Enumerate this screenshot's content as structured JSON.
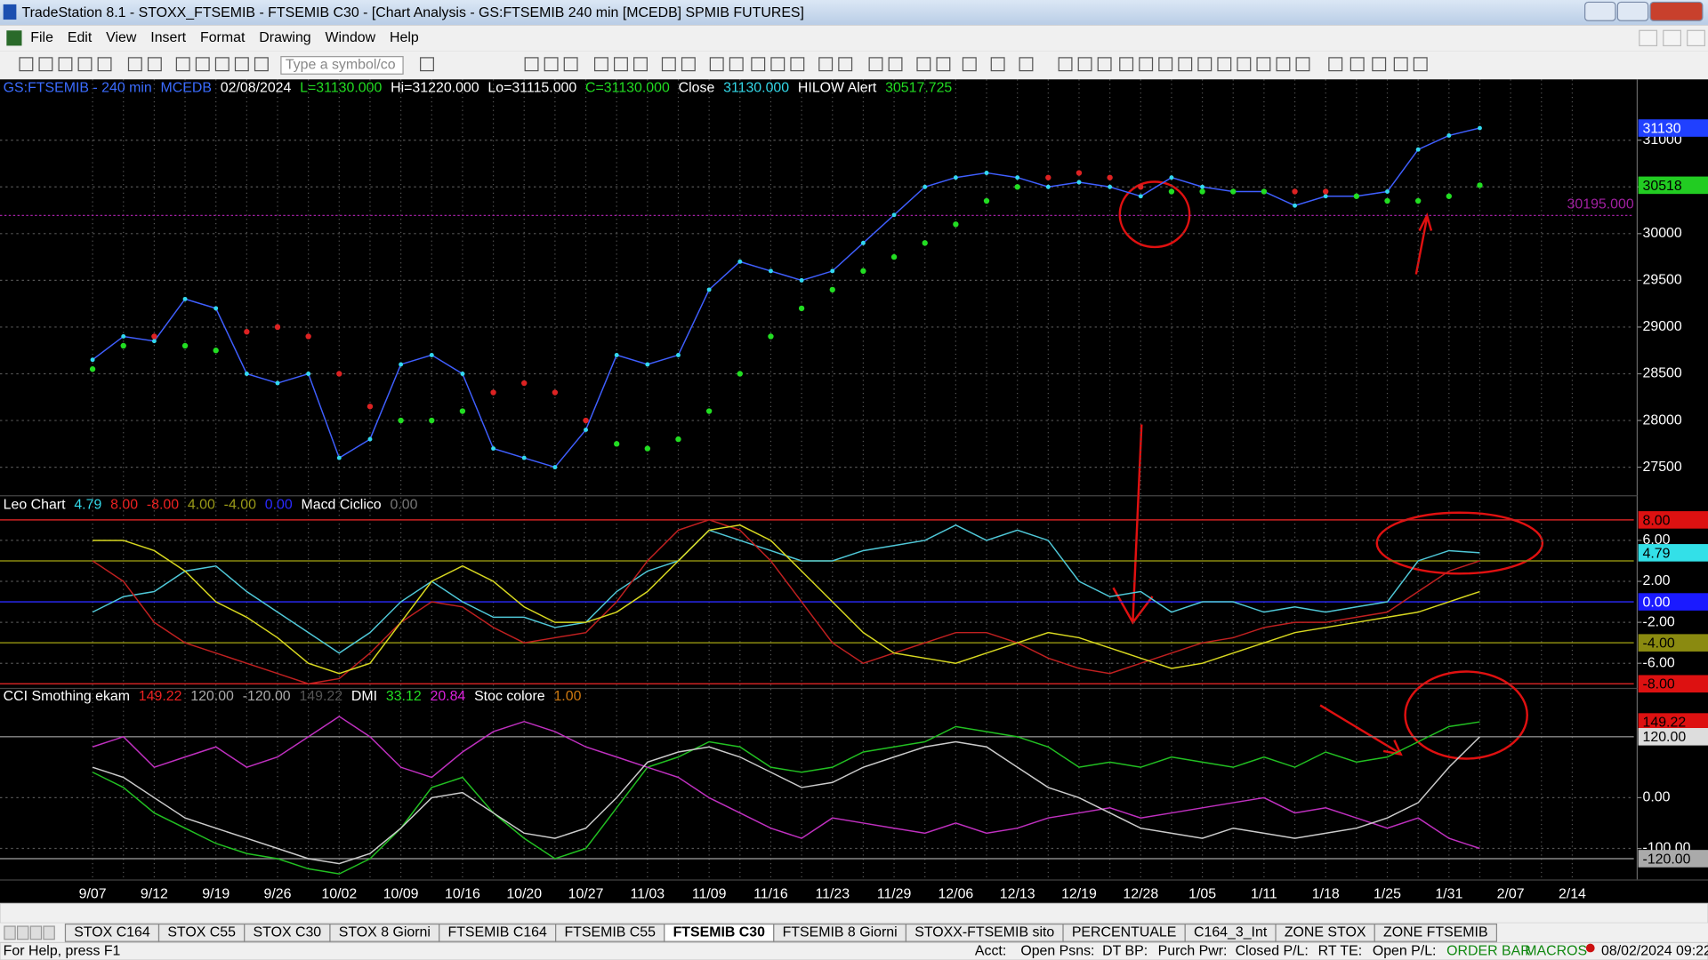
{
  "window": {
    "title": "TradeStation 8.1 - STOXX_FTSEMIB - FTSEMIB C30 - [Chart Analysis - GS:FTSEMIB  240 min  [MCEDB] SPMIB FUTURES]",
    "menu": [
      "File",
      "Edit",
      "View",
      "Insert",
      "Format",
      "Drawing",
      "Window",
      "Help"
    ],
    "symbol_box": "Type a symbol/co"
  },
  "chart_data": [
    {
      "type": "line",
      "header": [
        {
          "text": "GS:FTSEMIB - 240 min",
          "color": "#3b6cff"
        },
        {
          "text": "MCEDB",
          "color": "#3b6cff"
        },
        {
          "text": "02/08/2024",
          "color": "#ffffff"
        },
        {
          "text": "L=31130.000",
          "color": "#22dd22"
        },
        {
          "text": "Hi=31220.000",
          "color": "#ffffff"
        },
        {
          "text": "Lo=31115.000",
          "color": "#ffffff"
        },
        {
          "text": "C=31130.000",
          "color": "#22dd22"
        },
        {
          "text": "Close",
          "color": "#ffffff"
        },
        {
          "text": "31130.000",
          "color": "#33d8e8"
        },
        {
          "text": "HILOW Alert",
          "color": "#ffffff"
        },
        {
          "text": "30517.725",
          "color": "#22dd22"
        }
      ],
      "categories": [
        "9/07",
        null,
        "9/12",
        null,
        "9/19",
        null,
        "9/26",
        null,
        "10/02",
        null,
        "10/09",
        null,
        "10/16",
        null,
        "10/20",
        null,
        "10/27",
        null,
        "11/03",
        null,
        "11/09",
        null,
        "11/16",
        null,
        "11/23",
        null,
        "11/29",
        null,
        "12/06",
        null,
        "12/13",
        null,
        "12/19",
        null,
        "12/28",
        null,
        "1/05",
        null,
        "1/11",
        null,
        "1/18",
        null,
        "1/25",
        null,
        "1/31",
        null,
        "2/07",
        null,
        "2/14"
      ],
      "series": [
        {
          "color": "#3f5fff",
          "point_color": "#33d8f0",
          "values": [
            28650,
            28900,
            28850,
            29300,
            29200,
            28500,
            28400,
            28500,
            27600,
            27800,
            28600,
            28700,
            28500,
            27700,
            27600,
            27500,
            27900,
            28700,
            28600,
            28700,
            29400,
            29700,
            29600,
            29500,
            29600,
            29900,
            30200,
            30500,
            30600,
            30650,
            30600,
            30500,
            30550,
            30500,
            30400,
            30600,
            30500,
            30450,
            30450,
            30300,
            30400,
            30400,
            30450,
            30900,
            31050,
            31130,
            null,
            null,
            null
          ]
        },
        {
          "color": "#22dd22",
          "color_above": "#dd2222",
          "values": [
            28550,
            28800,
            28900,
            28800,
            28750,
            28950,
            29000,
            28900,
            28500,
            28150,
            28000,
            28000,
            28100,
            28300,
            28400,
            28300,
            28000,
            27750,
            27700,
            27800,
            28100,
            28500,
            28900,
            29200,
            29400,
            29600,
            29750,
            29900,
            30100,
            30350,
            30500,
            30600,
            30650,
            30600,
            30500,
            30450,
            30450,
            30450,
            30450,
            30450,
            30450,
            30400,
            30350,
            30350,
            30400,
            30518,
            null,
            null,
            null
          ]
        }
      ],
      "ylim": [
        27200,
        31650
      ],
      "yticks": [
        27500,
        28000,
        28500,
        29000,
        29500,
        30000,
        30500,
        31000
      ],
      "markers": [
        {
          "value": 31130,
          "color": "#2040ff"
        },
        {
          "value": 30518,
          "color": "#22cc22"
        }
      ],
      "reference_line": {
        "value": 30195,
        "label": "30195.000",
        "color": "#a020a0"
      },
      "grid": true
    },
    {
      "type": "line",
      "header": [
        {
          "text": "Leo Chart",
          "color": "#ffffff"
        },
        {
          "text": "4.79",
          "color": "#33d8e8"
        },
        {
          "text": "8.00",
          "color": "#ee2222"
        },
        {
          "text": "-8.00",
          "color": "#ee2222"
        },
        {
          "text": "4.00",
          "color": "#9a9a18"
        },
        {
          "text": "-4.00",
          "color": "#9a9a18"
        },
        {
          "text": "0.00",
          "color": "#2a2aff"
        },
        {
          "text": "Macd Ciclico",
          "color": "#ffffff"
        },
        {
          "text": "0.00",
          "color": "#777777"
        }
      ],
      "series": [
        {
          "color": "#4fc8d8",
          "values": [
            -1,
            0.5,
            1,
            3,
            3.5,
            1,
            -1,
            -3,
            -5,
            -3,
            0,
            2,
            0,
            -1.5,
            -1.5,
            -2.5,
            -2,
            1,
            3,
            4,
            7,
            6,
            5,
            4,
            4,
            5,
            5.5,
            6,
            7.5,
            6,
            7,
            6,
            2,
            0.5,
            1,
            -1,
            0,
            0,
            -1,
            -0.5,
            -1,
            -0.5,
            0,
            4,
            5,
            4.79,
            null,
            null,
            null
          ]
        },
        {
          "color": "#c02020",
          "values": [
            4,
            2,
            -2,
            -4,
            -5,
            -6,
            -7,
            -8,
            -7.5,
            -5,
            -2,
            0,
            -0.5,
            -2.5,
            -4,
            -3.5,
            -3,
            0,
            4,
            7,
            8,
            7,
            4,
            0,
            -4,
            -6,
            -5,
            -4,
            -3,
            -3,
            -4,
            -5.5,
            -6.5,
            -7,
            -6,
            -5,
            -4,
            -3.5,
            -2.5,
            -2,
            -2,
            -1.5,
            -1,
            1,
            3,
            4,
            null,
            null,
            null
          ]
        },
        {
          "color": "#d8d820",
          "values": [
            6,
            6,
            5,
            3,
            0,
            -1.5,
            -3.5,
            -6,
            -7,
            -6,
            -2,
            2,
            3.5,
            2,
            -0.5,
            -2,
            -2,
            -1,
            1,
            4,
            7,
            7.5,
            6,
            3,
            0,
            -3,
            -5,
            -5.5,
            -6,
            -5,
            -4,
            -3,
            -3.5,
            -4.5,
            -5.5,
            -6.5,
            -6,
            -5,
            -4,
            -3,
            -2.5,
            -2,
            -1.5,
            -1,
            0,
            1,
            null,
            null,
            null
          ]
        }
      ],
      "ylim": [
        -8.4,
        10.3
      ],
      "yticks": [
        {
          "value": 6,
          "label": "6.00"
        },
        {
          "value": 2,
          "label": "2.00"
        },
        {
          "value": -2,
          "label": "-2.00"
        },
        {
          "value": -6,
          "label": "-6.00"
        }
      ],
      "markers": [
        {
          "value": 8,
          "label": "8.00",
          "color": "#dd1111"
        },
        {
          "value": 4.79,
          "label": "4.79",
          "color": "#33e0e8"
        },
        {
          "value": 0,
          "label": "0.00",
          "color": "#1a1aff"
        },
        {
          "value": -4,
          "label": "-4.00",
          "color": "#8a8a10"
        },
        {
          "value": -8,
          "label": "-8.00",
          "color": "#dd1111"
        }
      ],
      "levels": [
        {
          "value": 8,
          "color": "#cc2222"
        },
        {
          "value": 4,
          "color": "#8a8a10"
        },
        {
          "value": 0,
          "color": "#2a2aff"
        },
        {
          "value": -4,
          "color": "#8a8a10"
        },
        {
          "value": -8,
          "color": "#cc2222"
        }
      ],
      "grid": true
    },
    {
      "type": "line",
      "header": [
        {
          "text": "CCI Smothing ekam",
          "color": "#ffffff"
        },
        {
          "text": "149.22",
          "color": "#ee2222"
        },
        {
          "text": "120.00",
          "color": "#aaaaaa"
        },
        {
          "text": "-120.00",
          "color": "#aaaaaa"
        },
        {
          "text": "149.22",
          "color": "#555555"
        },
        {
          "text": "DMI",
          "color": "#ffffff"
        },
        {
          "text": "33.12",
          "color": "#22dd22"
        },
        {
          "text": "20.84",
          "color": "#dd22dd"
        },
        {
          "text": "Stoc colore",
          "color": "#ffffff"
        },
        {
          "text": "1.00",
          "color": "#d07a10"
        }
      ],
      "series": [
        {
          "color": "#22c022",
          "values": [
            50,
            20,
            -30,
            -60,
            -90,
            -110,
            -120,
            -140,
            -150,
            -120,
            -60,
            20,
            40,
            -30,
            -80,
            -120,
            -100,
            -20,
            60,
            80,
            110,
            100,
            60,
            50,
            60,
            90,
            100,
            110,
            140,
            130,
            120,
            100,
            60,
            70,
            60,
            80,
            70,
            60,
            80,
            60,
            90,
            70,
            80,
            110,
            140,
            149.22,
            null,
            null,
            null
          ]
        },
        {
          "color": "#c030c0",
          "values": [
            100,
            120,
            60,
            80,
            100,
            60,
            80,
            120,
            160,
            120,
            60,
            40,
            90,
            130,
            150,
            130,
            100,
            80,
            60,
            40,
            0,
            -30,
            -60,
            -80,
            -40,
            -50,
            -60,
            -70,
            -50,
            -70,
            -60,
            -40,
            -30,
            -20,
            -40,
            -30,
            -20,
            -10,
            0,
            -30,
            -20,
            -40,
            -60,
            -40,
            -80,
            -100,
            null,
            null,
            null
          ]
        },
        {
          "color": "#cccccc",
          "values": [
            60,
            40,
            0,
            -40,
            -60,
            -80,
            -100,
            -120,
            -130,
            -110,
            -60,
            0,
            10,
            -30,
            -70,
            -80,
            -60,
            0,
            70,
            90,
            100,
            80,
            50,
            20,
            30,
            60,
            80,
            100,
            110,
            100,
            60,
            20,
            0,
            -30,
            -60,
            -70,
            -80,
            -60,
            -70,
            -80,
            -70,
            -60,
            -40,
            -10,
            60,
            120,
            null,
            null,
            null
          ]
        }
      ],
      "ylim": [
        -161,
        214
      ],
      "yticks": [
        {
          "value": 0,
          "label": "0.00"
        },
        {
          "value": -100,
          "label": "-100.00"
        }
      ],
      "markers": [
        {
          "value": 149.22,
          "label": "149.22",
          "color": "#dd1111"
        },
        {
          "value": 120,
          "label": "120.00",
          "color": "#dddddd"
        },
        {
          "value": -120,
          "label": "-120.00",
          "color": "#aaaaaa"
        }
      ],
      "levels": [
        {
          "value": 120,
          "color": "#888888"
        },
        {
          "value": -120,
          "color": "#888888"
        }
      ],
      "grid": true
    }
  ],
  "tabs": [
    "STOX C164",
    "STOX C55",
    "STOX C30",
    "STOX 8 Giorni",
    "FTSEMIB C164",
    "FTSEMIB C55",
    "FTSEMIB C30",
    "FTSEMIB 8 Giorni",
    "STOXX-FTSEMIB sito",
    "PERCENTUALE",
    "C164_3_Int",
    "ZONE STOX",
    "ZONE FTSEMIB"
  ],
  "active_tab": 6,
  "status_bar": {
    "help": "For Help, press F1",
    "fields": [
      "Acct:",
      "Open Psns:",
      "DT BP:",
      "Purch Pwr:",
      "Closed P/L:",
      "RT TE:",
      "Open P/L:"
    ],
    "order_bar": "ORDER BAR",
    "macros": "MACROS",
    "datetime": "08/02/2024 09:22"
  }
}
